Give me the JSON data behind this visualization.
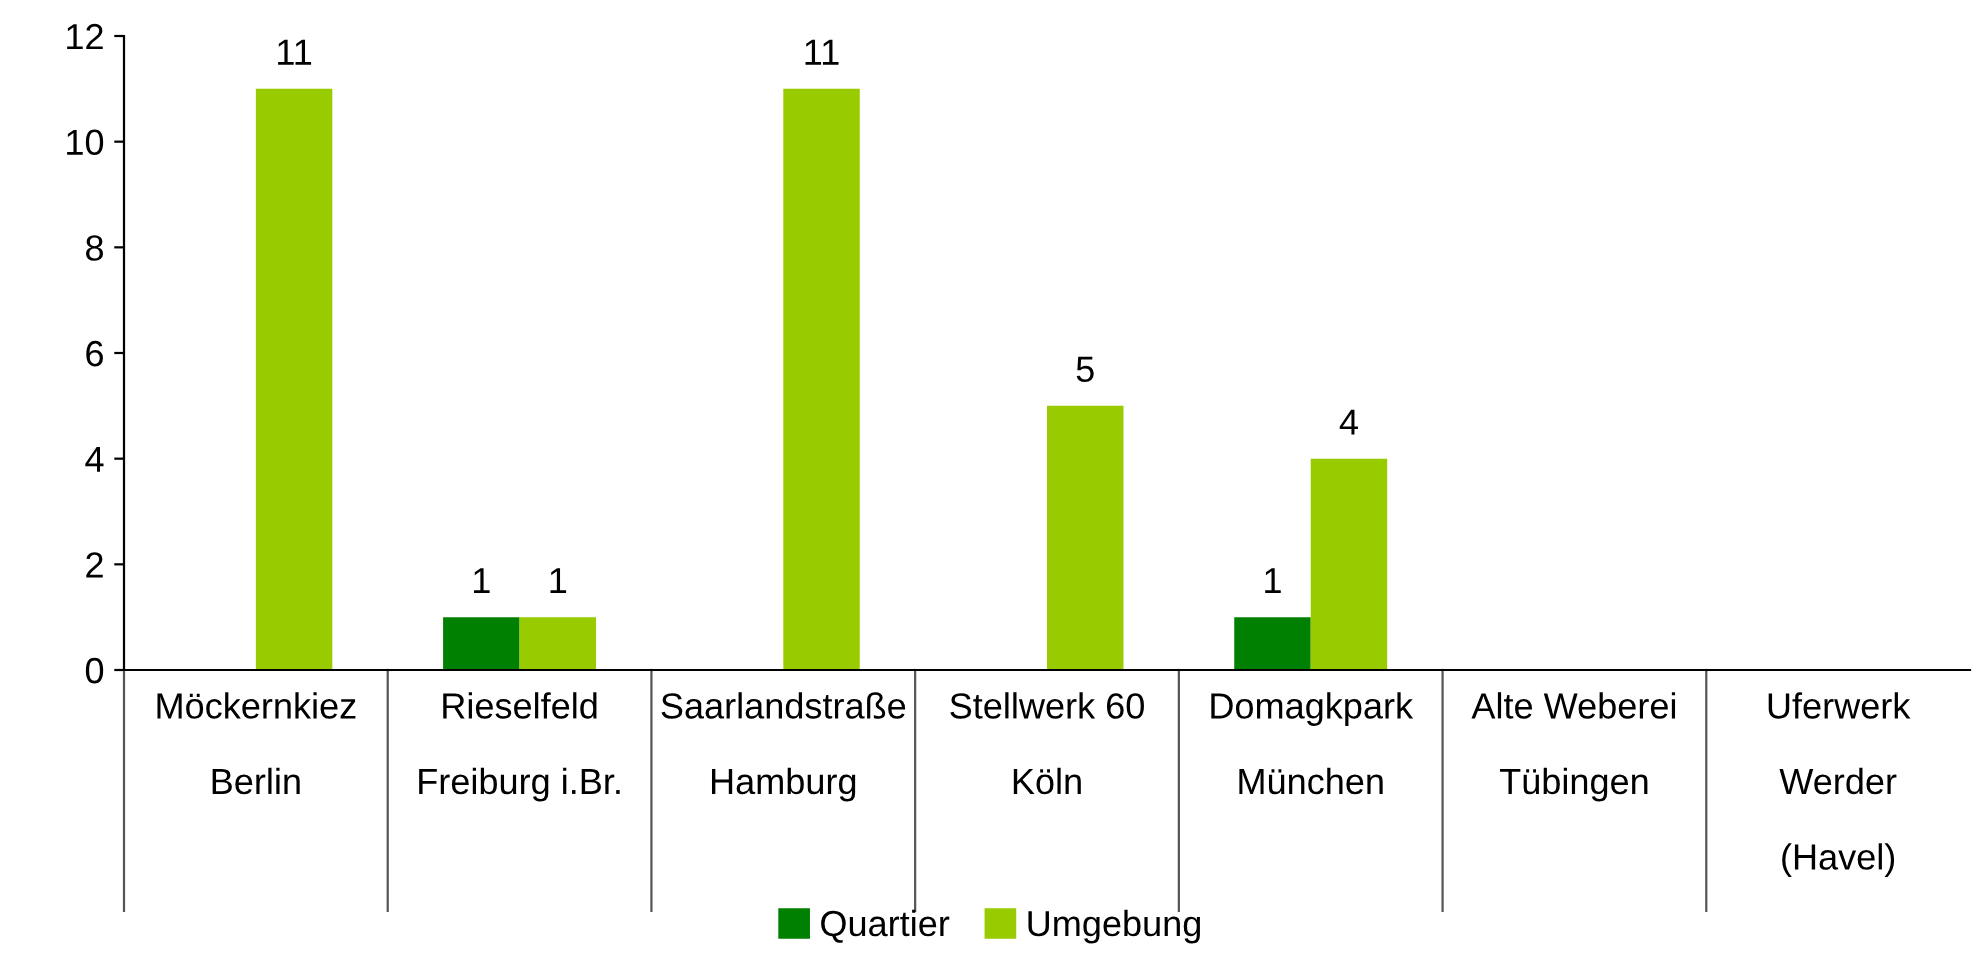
{
  "chart_data": {
    "type": "bar",
    "categories": [
      "Möckernkiez\nBerlin",
      "Rieselfeld\nFreiburg i.Br.",
      "Saarlandstraße\nHamburg",
      "Stellwerk 60\nKöln",
      "Domagkpark\nMünchen",
      "Alte Weberei\nTübingen",
      "Uferwerk\nWerder\n(Havel)"
    ],
    "series": [
      {
        "name": "Quartier",
        "color": "#008000",
        "values": [
          null,
          1,
          null,
          null,
          1,
          null,
          null
        ]
      },
      {
        "name": "Umgebung",
        "color": "#99cc00",
        "values": [
          11,
          1,
          11,
          5,
          4,
          null,
          null
        ]
      }
    ],
    "ylim": [
      0,
      12
    ],
    "yticks": [
      0,
      2,
      4,
      6,
      8,
      10,
      12
    ],
    "data_labels": true,
    "grid": false,
    "legend": "bottom"
  }
}
